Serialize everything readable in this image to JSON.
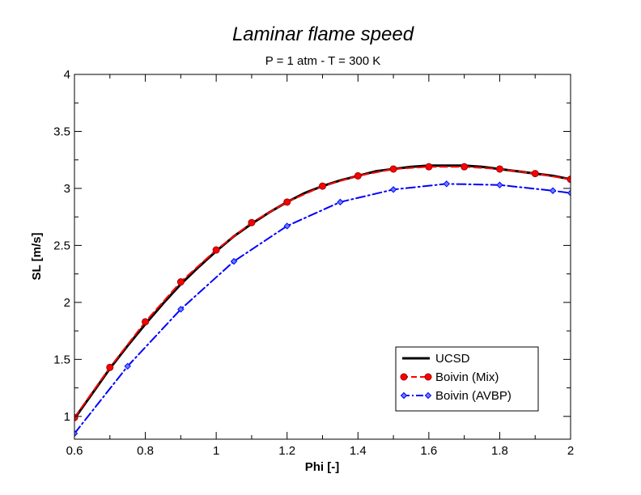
{
  "chart_data": {
    "type": "line",
    "title": "Laminar flame speed",
    "subtitle": "P = 1 atm - T = 300 K",
    "xlabel": "Phi [-]",
    "ylabel": "SL [m/s]",
    "xlim": [
      0.6,
      2.0
    ],
    "ylim": [
      0.8,
      4.0
    ],
    "xticks": [
      0.6,
      0.8,
      1.0,
      1.2,
      1.4,
      1.6,
      1.8,
      2.0
    ],
    "xtick_labels": [
      "0.6",
      "0.8",
      "1",
      "1.2",
      "1.4",
      "1.6",
      "1.8",
      "2"
    ],
    "yticks": [
      1.0,
      1.5,
      2.0,
      2.5,
      3.0,
      3.5,
      4.0
    ],
    "ytick_labels": [
      "1",
      "1.5",
      "2",
      "2.5",
      "3",
      "3.5",
      "4"
    ],
    "grid": false,
    "legend_position": "bottom-right",
    "series": [
      {
        "name": "UCSD",
        "color": "#000000",
        "style": "solid",
        "marker": "none",
        "x": [
          0.6,
          0.65,
          0.7,
          0.75,
          0.8,
          0.85,
          0.9,
          0.95,
          1.0,
          1.05,
          1.1,
          1.15,
          1.2,
          1.25,
          1.3,
          1.35,
          1.4,
          1.45,
          1.5,
          1.55,
          1.6,
          1.65,
          1.7,
          1.75,
          1.8,
          1.85,
          1.9,
          1.95,
          2.0
        ],
        "y": [
          0.98,
          1.2,
          1.42,
          1.62,
          1.81,
          1.99,
          2.16,
          2.31,
          2.45,
          2.58,
          2.69,
          2.79,
          2.88,
          2.96,
          3.02,
          3.07,
          3.11,
          3.15,
          3.17,
          3.19,
          3.2,
          3.2,
          3.2,
          3.19,
          3.17,
          3.15,
          3.13,
          3.11,
          3.08
        ]
      },
      {
        "name": "Boivin (Mix)",
        "color": "#ff0000",
        "style": "dashed",
        "marker": "circle",
        "x": [
          0.6,
          0.7,
          0.8,
          0.9,
          1.0,
          1.1,
          1.2,
          1.3,
          1.4,
          1.5,
          1.6,
          1.7,
          1.8,
          1.9,
          2.0
        ],
        "y": [
          0.99,
          1.43,
          1.83,
          2.18,
          2.46,
          2.7,
          2.88,
          3.02,
          3.11,
          3.17,
          3.19,
          3.19,
          3.17,
          3.13,
          3.08
        ]
      },
      {
        "name": "Boivin (AVBP)",
        "color": "#0000ff",
        "style": "dashdot",
        "marker": "diamond",
        "x": [
          0.6,
          0.75,
          0.9,
          1.05,
          1.2,
          1.35,
          1.5,
          1.65,
          1.8,
          1.95,
          2.0
        ],
        "y": [
          0.85,
          1.44,
          1.94,
          2.36,
          2.67,
          2.88,
          2.99,
          3.04,
          3.03,
          2.98,
          2.96
        ]
      }
    ]
  }
}
